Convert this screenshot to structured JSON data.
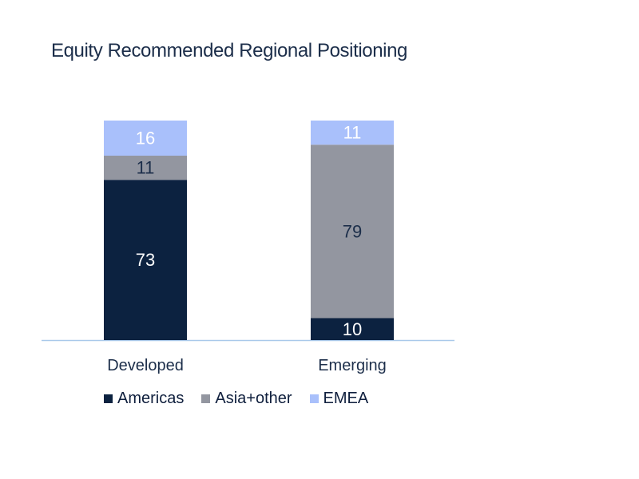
{
  "chart_data": {
    "type": "bar",
    "stacked": true,
    "title": "Equity Recommended Regional Positioning",
    "xlabel": "",
    "ylabel": "",
    "categories": [
      "Developed",
      "Emerging"
    ],
    "series": [
      {
        "name": "Americas",
        "values": [
          73,
          10
        ],
        "color": "#0c2240",
        "label_color": "#ffffff"
      },
      {
        "name": "Asia+other",
        "values": [
          11,
          79
        ],
        "color": "#9396a0",
        "label_color": "#1c2e4a"
      },
      {
        "name": "EMEA",
        "values": [
          16,
          11
        ],
        "color": "#a9c0fb",
        "label_color": "#ffffff"
      }
    ],
    "ylim": [
      0,
      100
    ],
    "grid": false,
    "legend": "bottom",
    "baseline_color": "#a9c9ea"
  }
}
